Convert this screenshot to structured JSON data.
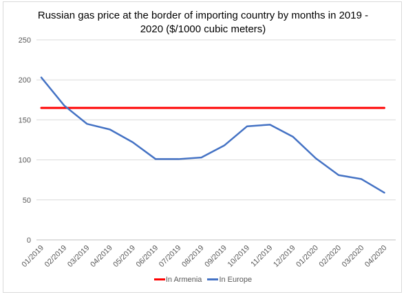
{
  "chart_data": {
    "type": "line",
    "title_line1": "Russian gas price at the border of importing country by months in 2019 -",
    "title_line2": "2020 ($/1000 cubic meters)",
    "categories": [
      "01/2019",
      "02/2019",
      "03/2019",
      "04/2019",
      "05/2019",
      "06/2019",
      "07/2019",
      "08/2019",
      "09/2019",
      "10/2019",
      "11/2019",
      "12/2019",
      "01/2020",
      "02/2020",
      "03/2020",
      "04/2020"
    ],
    "series": [
      {
        "name": "In Armenia",
        "color": "#ff0000",
        "values": [
          165,
          165,
          165,
          165,
          165,
          165,
          165,
          165,
          165,
          165,
          165,
          165,
          165,
          165,
          165,
          165
        ]
      },
      {
        "name": "In Europe",
        "color": "#4472c4",
        "values": [
          203,
          168,
          145,
          138,
          122,
          101,
          101,
          103,
          118,
          142,
          144,
          129,
          102,
          81,
          76,
          59
        ]
      }
    ],
    "ylim": [
      0,
      250
    ],
    "yticks": [
      0,
      50,
      100,
      150,
      200,
      250
    ],
    "grid": true,
    "legend_position": "bottom"
  }
}
